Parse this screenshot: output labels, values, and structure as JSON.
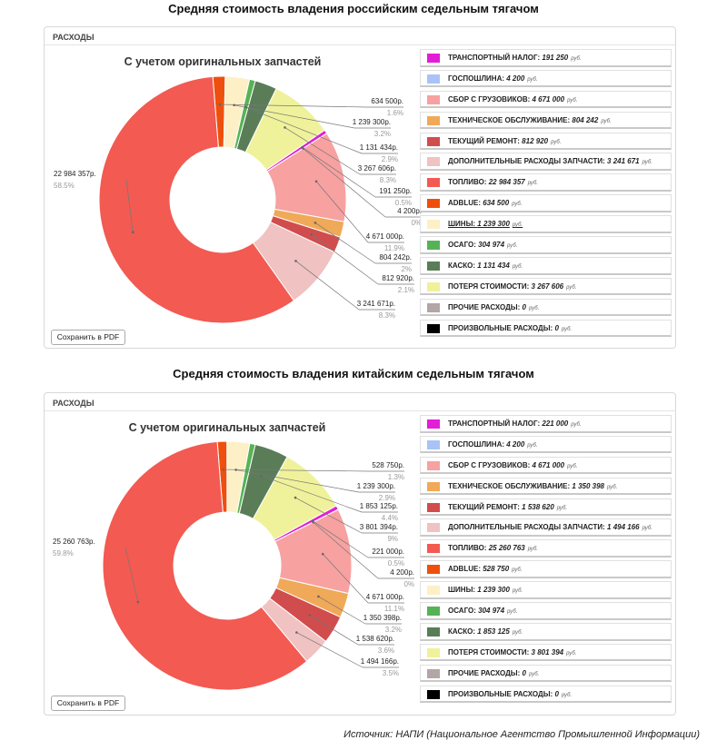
{
  "titles": {
    "russian": "Средняя стоимость владения российским седельным тягачом",
    "chinese": "Средняя стоимость владения китайским седельным тягачом"
  },
  "panel_header": "РАСХОДЫ",
  "pdf_button": "Сохранить в PDF",
  "unit": "руб.",
  "source": "Источник: НАПИ (Национальное Агентство Промышленной Информации)",
  "legend_colors": [
    "#e21ed6",
    "#a9c3f7",
    "#f7a1a1",
    "#f0a958",
    "#d14d4d",
    "#f0c2c2",
    "#f25a52",
    "#ef4f0d",
    "#fdf0c6",
    "#55b355",
    "#5a7d58",
    "#eff29a",
    "#b3a6a6",
    "#000000"
  ],
  "chart_data": [
    {
      "type": "pie",
      "title": "С учетом оригинальных запчастей",
      "categories": [
        "ТРАНСПОРТНЫЙ НАЛОГ",
        "ГОСПОШЛИНА",
        "СБОР С ГРУЗОВИКОВ",
        "ТЕХНИЧЕСКОЕ ОБСЛУЖИВАНИЕ",
        "ТЕКУЩИЙ РЕМОНТ",
        "ДОПОЛНИТЕЛЬНЫЕ РАСХОДЫ ЗАПЧАСТИ",
        "ТОПЛИВО",
        "ADBLUE",
        "ШИНЫ",
        "ОСАГО",
        "КАСКО",
        "ПОТЕРЯ СТОИМОСТИ",
        "ПРОЧИЕ РАСХОДЫ",
        "ПРОИЗВОЛЬНЫЕ РАСХОДЫ"
      ],
      "values": [
        191250,
        4200,
        4671000,
        804242,
        812920,
        3241671,
        22984357,
        634500,
        1239300,
        304974,
        1131434,
        3267606,
        0,
        0
      ],
      "legend_values": [
        "191 250",
        "4 200",
        "4 671 000",
        "804 242",
        "812 920",
        "3 241 671",
        "22 984 357",
        "634 500",
        "1 239 300",
        "304 974",
        "1 131 434",
        "3 267 606",
        "0",
        "0"
      ],
      "labels": [
        {
          "value": "634 500р.",
          "pct": "1.6%"
        },
        {
          "value": "1 239 300р.",
          "pct": "3.2%"
        },
        {
          "value": "1 131 434р.",
          "pct": "2.9%"
        },
        {
          "value": "3 267 606р.",
          "pct": "8.3%"
        },
        {
          "value": "191 250р.",
          "pct": "0.5%"
        },
        {
          "value": "4 200р.",
          "pct": "0%"
        },
        {
          "value": "4 671 000р.",
          "pct": "11.9%"
        },
        {
          "value": "804 242р.",
          "pct": "2%"
        },
        {
          "value": "812 920р.",
          "pct": "2.1%"
        },
        {
          "value": "3 241 671р.",
          "pct": "8.3%"
        },
        {
          "value": "22 984 357р.",
          "pct": "58.5%"
        }
      ]
    },
    {
      "type": "pie",
      "title": "С учетом оригинальных запчастей",
      "categories": [
        "ТРАНСПОРТНЫЙ НАЛОГ",
        "ГОСПОШЛИНА",
        "СБОР С ГРУЗОВИКОВ",
        "ТЕХНИЧЕСКОЕ ОБСЛУЖИВАНИЕ",
        "ТЕКУЩИЙ РЕМОНТ",
        "ДОПОЛНИТЕЛЬНЫЕ РАСХОДЫ ЗАПЧАСТИ",
        "ТОПЛИВО",
        "ADBLUE",
        "ШИНЫ",
        "ОСАГО",
        "КАСКО",
        "ПОТЕРЯ СТОИМОСТИ",
        "ПРОЧИЕ РАСХОДЫ",
        "ПРОИЗВОЛЬНЫЕ РАСХОДЫ"
      ],
      "values": [
        221000,
        4200,
        4671000,
        1350398,
        1538620,
        1494166,
        25260763,
        528750,
        1239300,
        304974,
        1853125,
        3801394,
        0,
        0
      ],
      "legend_values": [
        "221 000",
        "4 200",
        "4 671 000",
        "1 350 398",
        "1 538 620",
        "1 494 166",
        "25 260 763",
        "528 750",
        "1 239 300",
        "304 974",
        "1 853 125",
        "3 801 394",
        "0",
        "0"
      ],
      "labels": [
        {
          "value": "528 750р.",
          "pct": "1.3%"
        },
        {
          "value": "1 239 300р.",
          "pct": "2.9%"
        },
        {
          "value": "1 853 125р.",
          "pct": "4.4%"
        },
        {
          "value": "3 801 394р.",
          "pct": "9%"
        },
        {
          "value": "221 000р.",
          "pct": "0.5%"
        },
        {
          "value": "4 200р.",
          "pct": "0%"
        },
        {
          "value": "4 671 000р.",
          "pct": "11.1%"
        },
        {
          "value": "1 350 398р.",
          "pct": "3.2%"
        },
        {
          "value": "1 538 620р.",
          "pct": "3.6%"
        },
        {
          "value": "1 494 166р.",
          "pct": "3.5%"
        },
        {
          "value": "25 260 763р.",
          "pct": "59.8%"
        }
      ]
    }
  ]
}
